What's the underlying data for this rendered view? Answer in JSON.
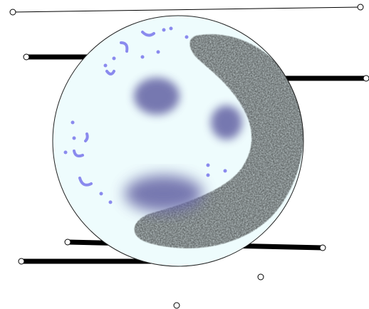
{
  "scene": {
    "background": "#ffffff",
    "disc_fill": "#eefcfd",
    "disc_outline": "#222222",
    "dark_cloud": "#0a0a0a",
    "blue_blobs": "#6a6aa8",
    "accent_blue": "#8a8aee",
    "line_color": "#000000",
    "endpoint_fill": "#ffffff"
  }
}
